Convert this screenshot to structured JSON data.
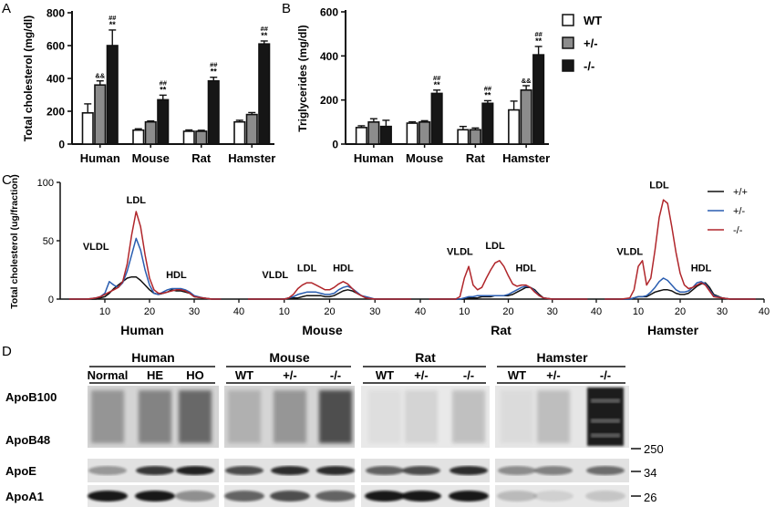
{
  "panel_a_letter": "A",
  "panel_b_letter": "B",
  "panel_c_letter": "C",
  "panel_d_letter": "D",
  "colors": {
    "wt_fill": "#ffffff",
    "het_fill": "#8c8c8c",
    "ko_fill": "#161616",
    "line_wt": "#111111",
    "line_het": "#2a5db0",
    "line_ko": "#b0262b"
  },
  "chart_data": [
    {
      "panel": "A",
      "type": "bar",
      "ylabel": "Total cholesterol (mg/dl)",
      "ylim": [
        0,
        800
      ],
      "yticks": [
        0,
        200,
        400,
        600,
        800
      ],
      "categories": [
        "Human",
        "Mouse",
        "Rat",
        "Hamster"
      ],
      "series": [
        {
          "name": "WT",
          "values": [
            190,
            85,
            78,
            135
          ],
          "errors": [
            55,
            8,
            8,
            10
          ]
        },
        {
          "name": "+/-",
          "values": [
            360,
            135,
            78,
            180
          ],
          "errors": [
            25,
            6,
            6,
            12
          ]
        },
        {
          "name": "-/-",
          "values": [
            600,
            270,
            385,
            610
          ],
          "errors": [
            95,
            28,
            22,
            18
          ]
        }
      ],
      "annotations": [
        {
          "category": "Human",
          "series": "+/-",
          "text": "&&"
        },
        {
          "category": "Human",
          "series": "-/-",
          "text": "##\n**"
        },
        {
          "category": "Mouse",
          "series": "-/-",
          "text": "##\n**"
        },
        {
          "category": "Rat",
          "series": "-/-",
          "text": "##\n**"
        },
        {
          "category": "Hamster",
          "series": "-/-",
          "text": "##\n**"
        }
      ]
    },
    {
      "panel": "B",
      "type": "bar",
      "ylabel": "Triglycerides (mg/dl)",
      "ylim": [
        0,
        600
      ],
      "yticks": [
        0,
        200,
        400,
        600
      ],
      "categories": [
        "Human",
        "Mouse",
        "Rat",
        "Hamster"
      ],
      "series": [
        {
          "name": "WT",
          "values": [
            75,
            95,
            65,
            155
          ],
          "errors": [
            8,
            6,
            15,
            40
          ]
        },
        {
          "name": "+/-",
          "values": [
            100,
            100,
            65,
            245
          ],
          "errors": [
            15,
            6,
            8,
            20
          ]
        },
        {
          "name": "-/-",
          "values": [
            80,
            230,
            185,
            405
          ],
          "errors": [
            28,
            15,
            12,
            38
          ]
        }
      ],
      "annotations": [
        {
          "category": "Mouse",
          "series": "-/-",
          "text": "##\n**"
        },
        {
          "category": "Rat",
          "series": "-/-",
          "text": "##\n**"
        },
        {
          "category": "Hamster",
          "series": "+/-",
          "text": "&&"
        },
        {
          "category": "Hamster",
          "series": "-/-",
          "text": "##\n**"
        }
      ],
      "legend": [
        "WT",
        "+/-",
        "-/-"
      ]
    },
    {
      "panel": "C",
      "type": "line",
      "ylabel": "Total cholesterol (ug/fraction)",
      "ylim": [
        0,
        100
      ],
      "yticks": [
        0,
        50,
        100
      ],
      "legend": [
        "+/+",
        "+/-",
        "-/-"
      ],
      "subplots": [
        {
          "name": "Human",
          "xlim": [
            0,
            40
          ],
          "xticks": [
            10,
            20,
            30,
            40
          ],
          "x": [
            2,
            4,
            6,
            8,
            9,
            10,
            11,
            12,
            13,
            14,
            15,
            16,
            17,
            18,
            19,
            20,
            21,
            22,
            23,
            24,
            25,
            26,
            27,
            28,
            29,
            30,
            32,
            34,
            36
          ],
          "series": [
            {
              "name": "+/+",
              "values": [
                0,
                0,
                0,
                0,
                1,
                2,
                5,
                9,
                12,
                15,
                18,
                19,
                19,
                16,
                12,
                8,
                5,
                4,
                5,
                6,
                8,
                7,
                7,
                6,
                5,
                2,
                1,
                0,
                0
              ]
            },
            {
              "name": "+/-",
              "values": [
                0,
                0,
                0,
                1,
                2,
                5,
                15,
                12,
                10,
                14,
                24,
                38,
                52,
                42,
                25,
                12,
                5,
                4,
                6,
                8,
                9,
                9,
                9,
                8,
                6,
                3,
                1,
                0,
                0
              ]
            },
            {
              "name": "-/-",
              "values": [
                0,
                0,
                0,
                1,
                2,
                4,
                6,
                8,
                10,
                15,
                30,
                55,
                75,
                62,
                38,
                18,
                8,
                5,
                5,
                6,
                7,
                8,
                8,
                7,
                5,
                2,
                1,
                0,
                0
              ]
            }
          ],
          "labels": [
            {
              "text": "VLDL",
              "x": 8,
              "y": 42
            },
            {
              "text": "LDL",
              "x": 17,
              "y": 82
            },
            {
              "text": "HDL",
              "x": 26,
              "y": 18
            }
          ]
        },
        {
          "name": "Mouse",
          "xlim": [
            0,
            40
          ],
          "xticks": [
            10,
            20,
            30,
            40
          ],
          "x": [
            2,
            4,
            6,
            8,
            10,
            11,
            12,
            13,
            14,
            15,
            16,
            17,
            18,
            19,
            20,
            21,
            22,
            23,
            24,
            25,
            26,
            27,
            28,
            30,
            32,
            34,
            36,
            38
          ],
          "series": [
            {
              "name": "+/+",
              "values": [
                0,
                0,
                0,
                0,
                0,
                1,
                1,
                1,
                2,
                3,
                3,
                3,
                3,
                2,
                2,
                3,
                5,
                7,
                8,
                7,
                5,
                3,
                1,
                0,
                0,
                0,
                0,
                0
              ]
            },
            {
              "name": "+/-",
              "values": [
                0,
                0,
                0,
                0,
                0,
                1,
                2,
                4,
                5,
                6,
                6,
                6,
                5,
                4,
                4,
                5,
                8,
                10,
                11,
                9,
                6,
                3,
                2,
                0,
                0,
                0,
                0,
                0
              ]
            },
            {
              "name": "-/-",
              "values": [
                0,
                0,
                0,
                0,
                0,
                1,
                4,
                9,
                12,
                14,
                14,
                12,
                10,
                8,
                8,
                10,
                13,
                15,
                13,
                9,
                5,
                3,
                1,
                0,
                0,
                0,
                0,
                0
              ]
            }
          ],
          "labels": [
            {
              "text": "VLDL",
              "x": 8,
              "y": 18
            },
            {
              "text": "LDL",
              "x": 15,
              "y": 24
            },
            {
              "text": "HDL",
              "x": 23,
              "y": 24
            }
          ]
        },
        {
          "name": "Rat",
          "xlim": [
            0,
            40
          ],
          "xticks": [
            10,
            20,
            30,
            40
          ],
          "x": [
            2,
            4,
            6,
            8,
            9,
            10,
            11,
            12,
            13,
            14,
            15,
            16,
            17,
            18,
            19,
            20,
            21,
            22,
            23,
            24,
            25,
            26,
            27,
            28,
            30,
            32,
            34,
            36,
            38
          ],
          "series": [
            {
              "name": "+/+",
              "values": [
                0,
                0,
                0,
                0,
                0,
                0,
                1,
                1,
                1,
                2,
                2,
                2,
                3,
                3,
                3,
                3,
                4,
                6,
                8,
                10,
                10,
                8,
                4,
                1,
                0,
                0,
                0,
                0,
                0
              ]
            },
            {
              "name": "+/-",
              "values": [
                0,
                0,
                0,
                0,
                0,
                1,
                2,
                2,
                3,
                3,
                3,
                3,
                3,
                3,
                3,
                4,
                6,
                8,
                10,
                11,
                10,
                7,
                3,
                1,
                0,
                0,
                0,
                0,
                0
              ]
            },
            {
              "name": "-/-",
              "values": [
                0,
                0,
                0,
                0,
                2,
                18,
                28,
                12,
                8,
                10,
                18,
                25,
                31,
                33,
                28,
                20,
                13,
                11,
                12,
                12,
                10,
                6,
                3,
                1,
                0,
                0,
                0,
                0,
                0
              ]
            }
          ],
          "labels": [
            {
              "text": "VLDL",
              "x": 9,
              "y": 38
            },
            {
              "text": "LDL",
              "x": 17,
              "y": 43
            },
            {
              "text": "HDL",
              "x": 24,
              "y": 24
            }
          ]
        },
        {
          "name": "Hamster",
          "xlim": [
            0,
            40
          ],
          "xticks": [
            10,
            20,
            30,
            40
          ],
          "x": [
            2,
            4,
            6,
            8,
            9,
            10,
            11,
            12,
            13,
            14,
            15,
            16,
            17,
            18,
            19,
            20,
            21,
            22,
            23,
            24,
            25,
            26,
            27,
            28,
            30,
            32,
            34,
            36,
            38
          ],
          "series": [
            {
              "name": "+/+",
              "values": [
                0,
                0,
                0,
                0,
                1,
                2,
                2,
                2,
                4,
                6,
                7,
                8,
                8,
                7,
                5,
                4,
                4,
                5,
                8,
                11,
                13,
                14,
                10,
                4,
                1,
                0,
                0,
                0,
                0
              ]
            },
            {
              "name": "+/-",
              "values": [
                0,
                0,
                0,
                0,
                1,
                2,
                2,
                3,
                6,
                10,
                15,
                18,
                16,
                12,
                8,
                6,
                6,
                7,
                10,
                14,
                15,
                13,
                8,
                3,
                1,
                0,
                0,
                0,
                0
              ]
            },
            {
              "name": "-/-",
              "values": [
                0,
                0,
                0,
                1,
                8,
                28,
                33,
                12,
                18,
                42,
                70,
                85,
                82,
                62,
                40,
                22,
                12,
                9,
                10,
                12,
                14,
                12,
                7,
                2,
                1,
                0,
                0,
                0,
                0
              ]
            }
          ],
          "labels": [
            {
              "text": "VLDL",
              "x": 8,
              "y": 38
            },
            {
              "text": "LDL",
              "x": 15,
              "y": 95
            },
            {
              "text": "HDL",
              "x": 25,
              "y": 24
            }
          ]
        }
      ]
    }
  ],
  "western": {
    "groups": [
      {
        "name": "Human",
        "lanes": [
          "Normal",
          "HE",
          "HO"
        ]
      },
      {
        "name": "Mouse",
        "lanes": [
          "WT",
          "+/-",
          "-/-"
        ]
      },
      {
        "name": "Rat",
        "lanes": [
          "WT",
          "+/-",
          "-/-"
        ]
      },
      {
        "name": "Hamster",
        "lanes": [
          "WT",
          "+/-",
          "-/-"
        ]
      }
    ],
    "rows": [
      "ApoB100",
      "ApoB48",
      "ApoE",
      "ApoA1"
    ],
    "markers": [
      "250",
      "34",
      "26"
    ]
  }
}
